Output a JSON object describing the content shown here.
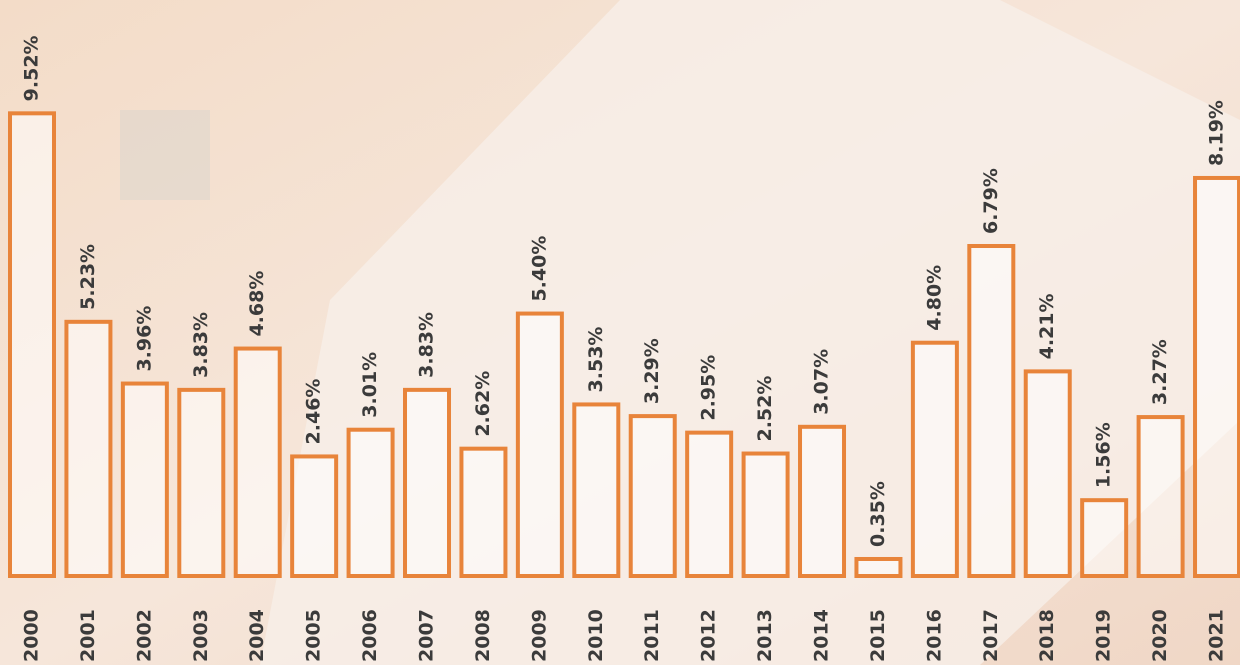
{
  "chart_data": {
    "type": "bar",
    "categories": [
      "2000",
      "2001",
      "2002",
      "2003",
      "2004",
      "2005",
      "2006",
      "2007",
      "2008",
      "2009",
      "2010",
      "2011",
      "2012",
      "2013",
      "2014",
      "2015",
      "2016",
      "2017",
      "2018",
      "2019",
      "2020",
      "2021"
    ],
    "values": [
      9.52,
      5.23,
      3.96,
      3.83,
      4.68,
      2.46,
      3.01,
      3.83,
      2.62,
      5.4,
      3.53,
      3.29,
      2.95,
      2.52,
      3.07,
      0.35,
      4.8,
      6.79,
      4.21,
      1.56,
      3.27,
      8.19
    ],
    "value_labels": [
      "9.52%",
      "5.23%",
      "3.96%",
      "3.83%",
      "4.68%",
      "2.46%",
      "3.01%",
      "3.83%",
      "2.62%",
      "5.40%",
      "3.53%",
      "3.29%",
      "2.95%",
      "2.52%",
      "3.07%",
      "0.35%",
      "4.80%",
      "6.79%",
      "4.21%",
      "1.56%",
      "3.27%",
      "8.19%"
    ],
    "color": "#e8843a"
  }
}
